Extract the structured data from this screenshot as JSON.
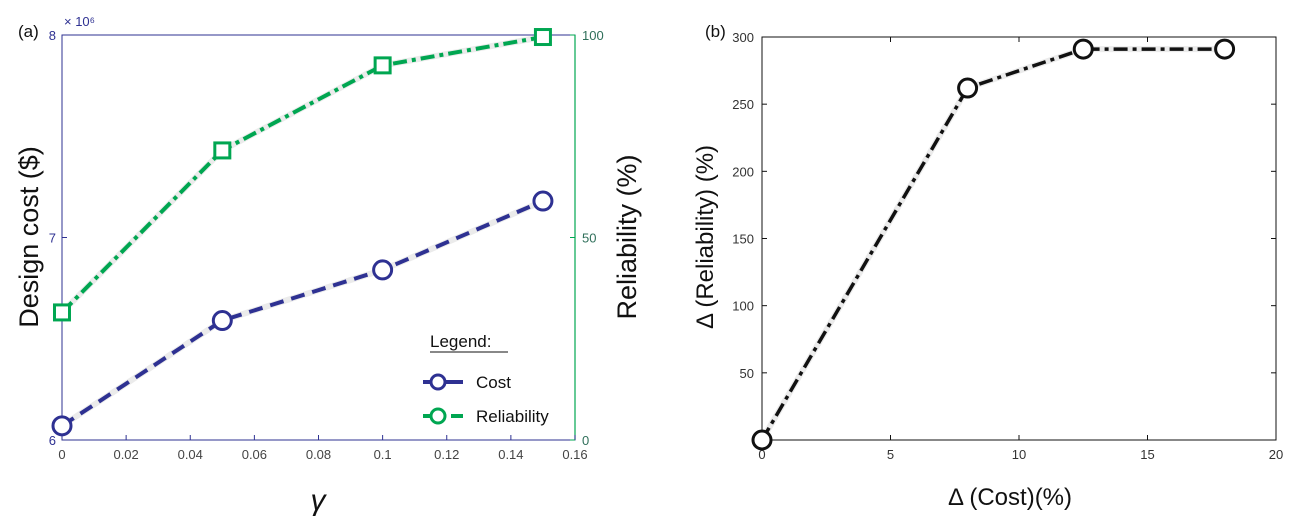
{
  "chart_data": [
    {
      "panel_label": "(a)",
      "type": "line",
      "x": [
        0,
        0.05,
        0.1,
        0.15
      ],
      "xlabel": "γ",
      "xlim": [
        0,
        0.16
      ],
      "xticks": [
        "0",
        "0.02",
        "0.04",
        "0.06",
        "0.08",
        "0.1",
        "0.12",
        "0.14",
        "0.16"
      ],
      "ylabel": "Design cost ($)",
      "ylim": [
        6,
        8
      ],
      "yticks": [
        "6",
        "7",
        "8"
      ],
      "y_multiplier": "× 10⁶",
      "y2label": "Reliability (%)",
      "y2lim": [
        0,
        100
      ],
      "y2ticks": [
        "0",
        "50",
        "100"
      ],
      "series": [
        {
          "name": "Cost",
          "axis": "left",
          "color": "#2e3192",
          "marker": "circle",
          "linestyle": "dashed",
          "values": [
            6.07,
            6.59,
            6.84,
            7.18
          ]
        },
        {
          "name": "Reliability",
          "axis": "right",
          "color": "#00a651",
          "marker": "square",
          "linestyle": "dash-dot",
          "values": [
            31.5,
            71.5,
            92.5,
            99.5
          ]
        }
      ],
      "legend": {
        "title": "Legend:",
        "position": "bottom-right"
      },
      "grid": false
    },
    {
      "panel_label": "(b)",
      "type": "line",
      "x": [
        0,
        8,
        12.5,
        18
      ],
      "xlabel": "Δ (Cost)(%)",
      "xlim": [
        0,
        20
      ],
      "xticks": [
        "0",
        "5",
        "10",
        "15",
        "20"
      ],
      "ylabel": "Δ (Reliability) (%)",
      "ylim": [
        0,
        300
      ],
      "yticks": [
        "50",
        "100",
        "150",
        "200",
        "250",
        "300"
      ],
      "series": [
        {
          "color": "#111111",
          "marker": "circle",
          "linestyle": "dash-dot",
          "values": [
            0,
            262,
            291,
            291
          ]
        }
      ],
      "grid": false
    }
  ]
}
